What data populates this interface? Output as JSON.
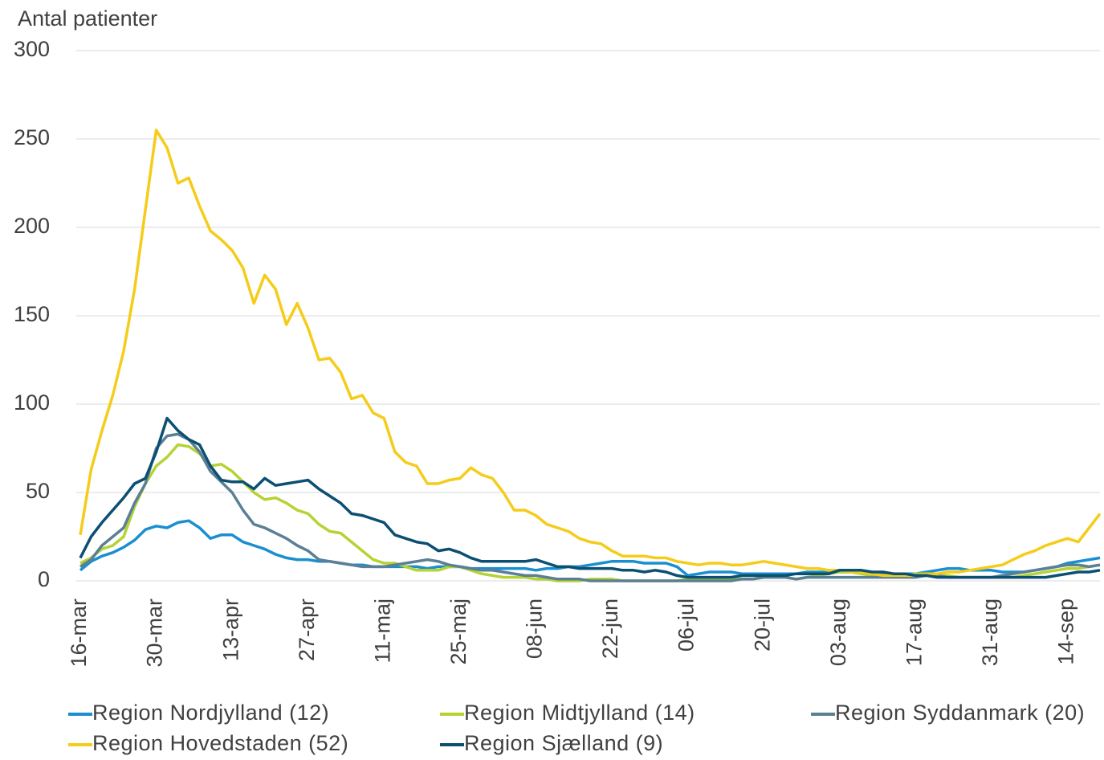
{
  "chart_data": {
    "type": "line",
    "y_label": "Antal patienter",
    "ylim": [
      0,
      300
    ],
    "yticks": [
      0,
      50,
      100,
      150,
      200,
      250,
      300
    ],
    "grid": true,
    "categories": [
      "16-mar",
      null,
      null,
      null,
      null,
      null,
      null,
      "30-mar",
      null,
      null,
      null,
      null,
      null,
      null,
      "13-apr",
      null,
      null,
      null,
      null,
      null,
      null,
      "27-apr",
      null,
      null,
      null,
      null,
      null,
      null,
      "11-maj",
      null,
      null,
      null,
      null,
      null,
      null,
      "25-maj",
      null,
      null,
      null,
      null,
      null,
      null,
      "08-jun",
      null,
      null,
      null,
      null,
      null,
      null,
      "22-jun",
      null,
      null,
      null,
      null,
      null,
      null,
      "06-jul",
      null,
      null,
      null,
      null,
      null,
      null,
      "20-jul",
      null,
      null,
      null,
      null,
      null,
      null,
      "03-aug",
      null,
      null,
      null,
      null,
      null,
      null,
      "17-aug",
      null,
      null,
      null,
      null,
      null,
      null,
      "31-aug",
      null,
      null,
      null,
      null,
      null,
      null,
      "14-sep",
      null,
      null,
      null
    ],
    "series": [
      {
        "name": "Region Nordjylland (12)",
        "color": "#1a8fd0",
        "values": [
          6,
          11,
          14,
          16,
          19,
          23,
          29,
          31,
          30,
          33,
          34,
          30,
          24,
          26,
          26,
          22,
          20,
          18,
          15,
          13,
          12,
          12,
          11,
          11,
          10,
          9,
          9,
          8,
          8,
          8,
          8,
          8,
          7,
          8,
          8,
          8,
          7,
          7,
          7,
          7,
          7,
          7,
          6,
          7,
          7,
          8,
          8,
          9,
          10,
          11,
          11,
          11,
          10,
          10,
          10,
          8,
          3,
          4,
          5,
          5,
          5,
          4,
          4,
          4,
          4,
          4,
          4,
          5,
          5,
          5,
          5,
          5,
          5,
          4,
          4,
          4,
          4,
          4,
          5,
          6,
          7,
          7,
          6,
          6,
          6,
          5,
          5,
          5,
          6,
          7,
          8,
          10,
          11,
          12,
          13
        ]
      },
      {
        "name": "Region Midtjylland (14)",
        "color": "#b5d334",
        "values": [
          10,
          13,
          18,
          20,
          25,
          42,
          55,
          65,
          70,
          77,
          76,
          72,
          65,
          66,
          62,
          56,
          50,
          46,
          47,
          44,
          40,
          38,
          32,
          28,
          27,
          22,
          17,
          12,
          10,
          10,
          8,
          6,
          6,
          6,
          8,
          8,
          6,
          4,
          3,
          2,
          2,
          2,
          1,
          1,
          0,
          0,
          0,
          1,
          1,
          1,
          0,
          0,
          0,
          0,
          0,
          0,
          1,
          1,
          1,
          1,
          1,
          1,
          1,
          2,
          2,
          2,
          1,
          2,
          3,
          4,
          5,
          5,
          4,
          3,
          3,
          3,
          3,
          4,
          4,
          3,
          3,
          2,
          2,
          2,
          2,
          2,
          2,
          3,
          4,
          5,
          6,
          7,
          7,
          8,
          9
        ]
      },
      {
        "name": "Region Syddanmark (20)",
        "color": "#5b7f95",
        "values": [
          8,
          12,
          20,
          25,
          30,
          44,
          55,
          75,
          82,
          83,
          80,
          73,
          62,
          56,
          50,
          40,
          32,
          30,
          27,
          24,
          20,
          17,
          12,
          11,
          10,
          9,
          8,
          8,
          8,
          9,
          10,
          11,
          12,
          11,
          9,
          8,
          7,
          6,
          6,
          5,
          4,
          3,
          3,
          2,
          1,
          1,
          1,
          0,
          0,
          0,
          0,
          0,
          0,
          0,
          0,
          0,
          0,
          0,
          0,
          0,
          0,
          1,
          1,
          2,
          2,
          2,
          1,
          2,
          2,
          2,
          2,
          2,
          2,
          2,
          2,
          2,
          2,
          2,
          3,
          3,
          2,
          2,
          2,
          2,
          2,
          3,
          4,
          5,
          6,
          7,
          8,
          9,
          9,
          8,
          9
        ]
      },
      {
        "name": "Region Hovedstaden (52)",
        "color": "#f5cc1a",
        "values": [
          26,
          63,
          85,
          105,
          130,
          165,
          210,
          255,
          245,
          225,
          228,
          212,
          198,
          193,
          187,
          177,
          157,
          173,
          165,
          145,
          157,
          143,
          125,
          126,
          118,
          103,
          105,
          95,
          92,
          73,
          67,
          65,
          55,
          55,
          57,
          58,
          64,
          60,
          58,
          50,
          40,
          40,
          37,
          32,
          30,
          28,
          24,
          22,
          21,
          17,
          14,
          14,
          14,
          13,
          13,
          11,
          10,
          9,
          10,
          10,
          9,
          9,
          10,
          11,
          10,
          9,
          8,
          7,
          7,
          6,
          6,
          5,
          5,
          4,
          3,
          3,
          3,
          3,
          4,
          4,
          5,
          5,
          6,
          7,
          8,
          9,
          12,
          15,
          17,
          20,
          22,
          24,
          22,
          30,
          38
        ]
      },
      {
        "name": "Region Sjælland (9)",
        "color": "#0b4f73",
        "values": [
          13,
          25,
          33,
          40,
          47,
          55,
          58,
          73,
          92,
          85,
          80,
          77,
          65,
          57,
          56,
          56,
          52,
          58,
          54,
          55,
          56,
          57,
          52,
          48,
          44,
          38,
          37,
          35,
          33,
          26,
          24,
          22,
          21,
          17,
          18,
          16,
          13,
          11,
          11,
          11,
          11,
          11,
          12,
          10,
          8,
          8,
          7,
          7,
          7,
          7,
          6,
          6,
          5,
          6,
          5,
          3,
          2,
          2,
          2,
          2,
          2,
          3,
          3,
          3,
          3,
          3,
          4,
          4,
          4,
          4,
          6,
          6,
          6,
          5,
          5,
          4,
          4,
          3,
          3,
          2,
          2,
          2,
          2,
          2,
          2,
          2,
          2,
          2,
          2,
          2,
          3,
          4,
          5,
          5,
          6
        ]
      }
    ]
  }
}
